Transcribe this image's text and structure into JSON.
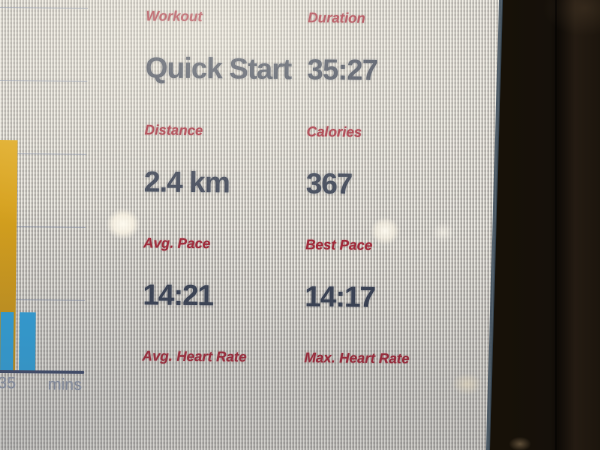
{
  "stats_panel": {
    "rows": [
      {
        "left": {
          "label": "Workout",
          "value": "Quick Start"
        },
        "right": {
          "label": "Duration",
          "value": "35:27"
        }
      },
      {
        "left": {
          "label": "Distance",
          "value": "2.4 km"
        },
        "right": {
          "label": "Calories",
          "value": "367"
        }
      },
      {
        "left": {
          "label": "Avg. Pace",
          "value": "14:21"
        },
        "right": {
          "label": "Best Pace",
          "value": "14:17"
        }
      },
      {
        "left": {
          "label": "Avg. Heart Rate"
        },
        "right": {
          "label": "Max. Heart Rate"
        }
      }
    ]
  },
  "chart": {
    "type": "bar",
    "x_axis_label": "mins",
    "x_tick_label": "35",
    "ylabel": "",
    "grid": true,
    "bars": [
      {
        "name": "tall-yellow-segment",
        "height_frac": 0.635,
        "color": "#dfa91f",
        "color_bottom": "#c08d18"
      },
      {
        "name": "short-blue-segment-1",
        "height_frac": 0.162,
        "color": "#2f9fd8"
      },
      {
        "name": "short-blue-segment-2",
        "height_frac": 0.162,
        "color": "#2f9fd8"
      }
    ]
  },
  "colors": {
    "label_text": "#a12b3b",
    "value_text": "#3a4254",
    "tick_text": "#8d95a6",
    "axis_line": "#3e4968",
    "grid_line": "#7d88a3",
    "bar_yellow": "#d39f1e",
    "bar_blue": "#2f9fd8",
    "screen_edge": "#3a4a58",
    "screen_bg": "#cbc7c0",
    "bezel": "#171108"
  }
}
